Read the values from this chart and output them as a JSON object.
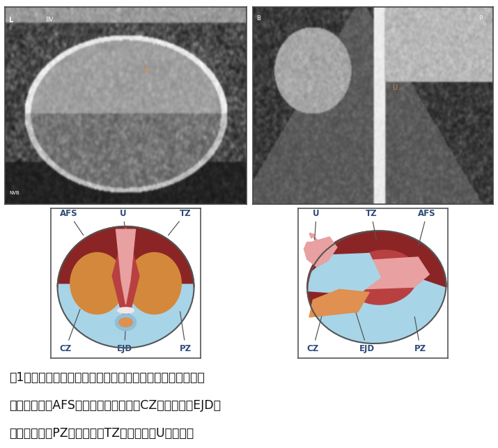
{
  "figure_width": 7.15,
  "figure_height": 6.43,
  "bg_color": "#ffffff",
  "caption_line1": "圖1：攝護腺解剖構造與超音波圖示（左圖為橫切面，右圖為",
  "caption_line2": "　　縱切面。AFS：前纖維肌瘤基質，CZ：中央區，EJD：",
  "caption_line3": "　　射精管，PZ：周邊區，TZ：移行區，U：尿道）",
  "caption_fontsize": 12.5,
  "colors": {
    "pz_blue": "#a8d4e8",
    "tz_red": "#b84040",
    "afs_dark_red": "#8b2525",
    "cz_orange": "#d4883c",
    "ejd_orange": "#e09050",
    "ejd_blue": "#90c0d8",
    "urethra_pink": "#e8a0a0",
    "urethra_white": "#f0e8e8",
    "outline": "#555555",
    "label_color": "#2c4a7a",
    "bg_white": "#ffffff"
  }
}
